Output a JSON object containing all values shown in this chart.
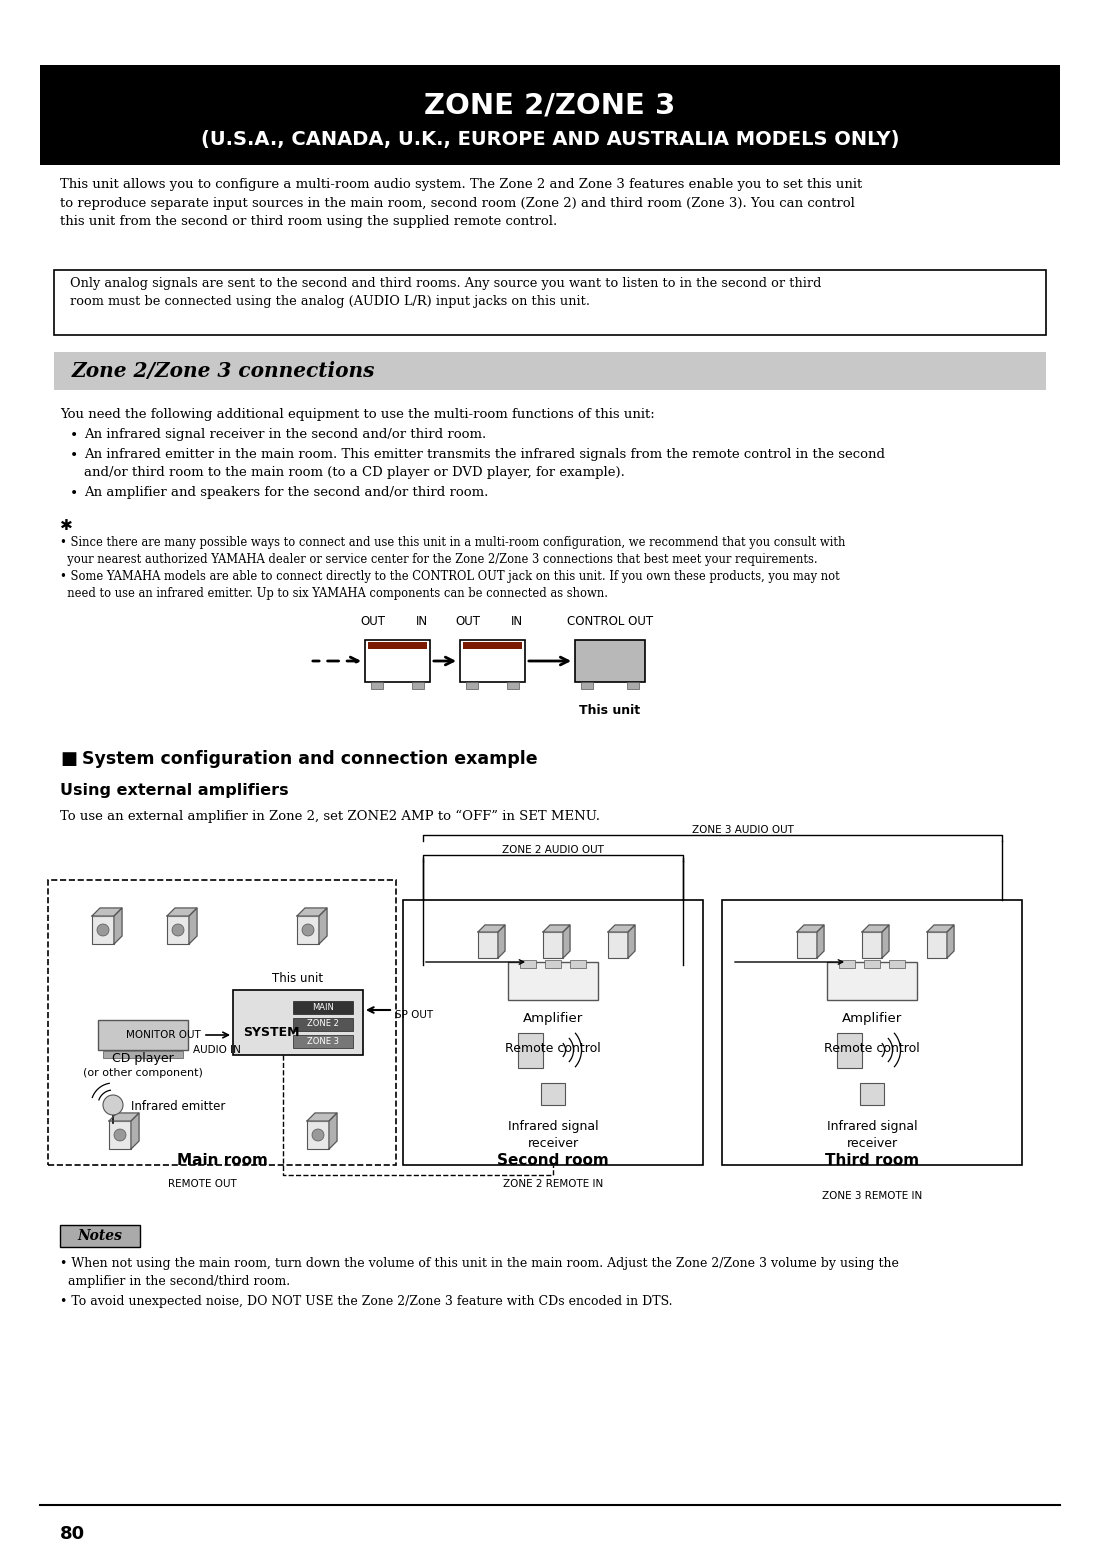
{
  "title_line1": "ZONE 2/ZONE 3",
  "title_line2": "(U.S.A., CANADA, U.K., EUROPE AND AUSTRALIA MODELS ONLY)",
  "title_bg": "#000000",
  "title_fg": "#ffffff",
  "section_header": "Zone 2/Zone 3 connections",
  "section_header_bg": "#c8c8c8",
  "body_text1": "This unit allows you to configure a multi-room audio system. The Zone 2 and Zone 3 features enable you to set this unit\nto reproduce separate input sources in the main room, second room (Zone 2) and third room (Zone 3). You can control\nthis unit from the second or third room using the supplied remote control.",
  "note_box_text": "Only analog signals are sent to the second and third rooms. Any source you want to listen to in the second or third\nroom must be connected using the analog (AUDIO L/R) input jacks on this unit.",
  "you_need_text": "You need the following additional equipment to use the multi-room functions of this unit:",
  "bullet1": "An infrared signal receiver in the second and/or third room.",
  "bullet2": "An infrared emitter in the main room. This emitter transmits the infrared signals from the remote control in the second\nand/or third room to the main room (to a CD player or DVD player, for example).",
  "bullet3": "An amplifier and speakers for the second and/or third room.",
  "tip_text1": "• Since there are many possible ways to connect and use this unit in a multi-room configuration, we recommend that you consult with\n  your nearest authorized YAMAHA dealer or service center for the Zone 2/Zone 3 connections that best meet your requirements.",
  "tip_text2": "• Some YAMAHA models are able to connect directly to the CONTROL OUT jack on this unit. If you own these products, you may not\n  need to use an infrared emitter. Up to six YAMAHA components can be connected as shown.",
  "sys_config_header": "System configuration and connection example",
  "using_ext_amp": "Using external amplifiers",
  "ext_amp_text": "To use an external amplifier in Zone 2, set ZONE2 AMP to “OFF” in SET MENU.",
  "notes_header": "Notes",
  "notes_text1": "• When not using the main room, turn down the volume of this unit in the main room. Adjust the Zone 2/Zone 3 volume by using the\n  amplifier in the second/third room.",
  "notes_text2": "• To avoid unexpected noise, DO NOT USE the Zone 2/Zone 3 feature with CDs encoded in DTS.",
  "page_num": "80",
  "bg_color": "#ffffff"
}
